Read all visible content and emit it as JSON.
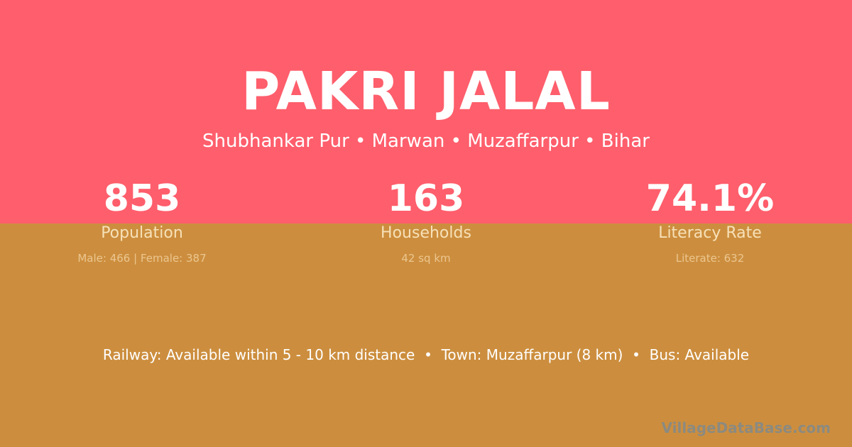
{
  "village": {
    "name": "PAKRI JALAL",
    "location": "Shubhankar Pur • Marwan • Muzaffarpur • Bihar"
  },
  "stats": [
    {
      "value": "853",
      "label": "Population",
      "detail": "Male: 466 | Female: 387"
    },
    {
      "value": "163",
      "label": "Households",
      "detail": "42 sq km"
    },
    {
      "value": "74.1%",
      "label": "Literacy Rate",
      "detail": "Literate: 632"
    }
  ],
  "facts": "Railway: Available within 5 - 10 km distance  •  Town: Muzaffarpur (8 km)  •  Bus: Available",
  "watermark": "VillageDataBase.com",
  "colors": {
    "top": "#ff5e6c",
    "bottom": "#cc8e3e"
  }
}
